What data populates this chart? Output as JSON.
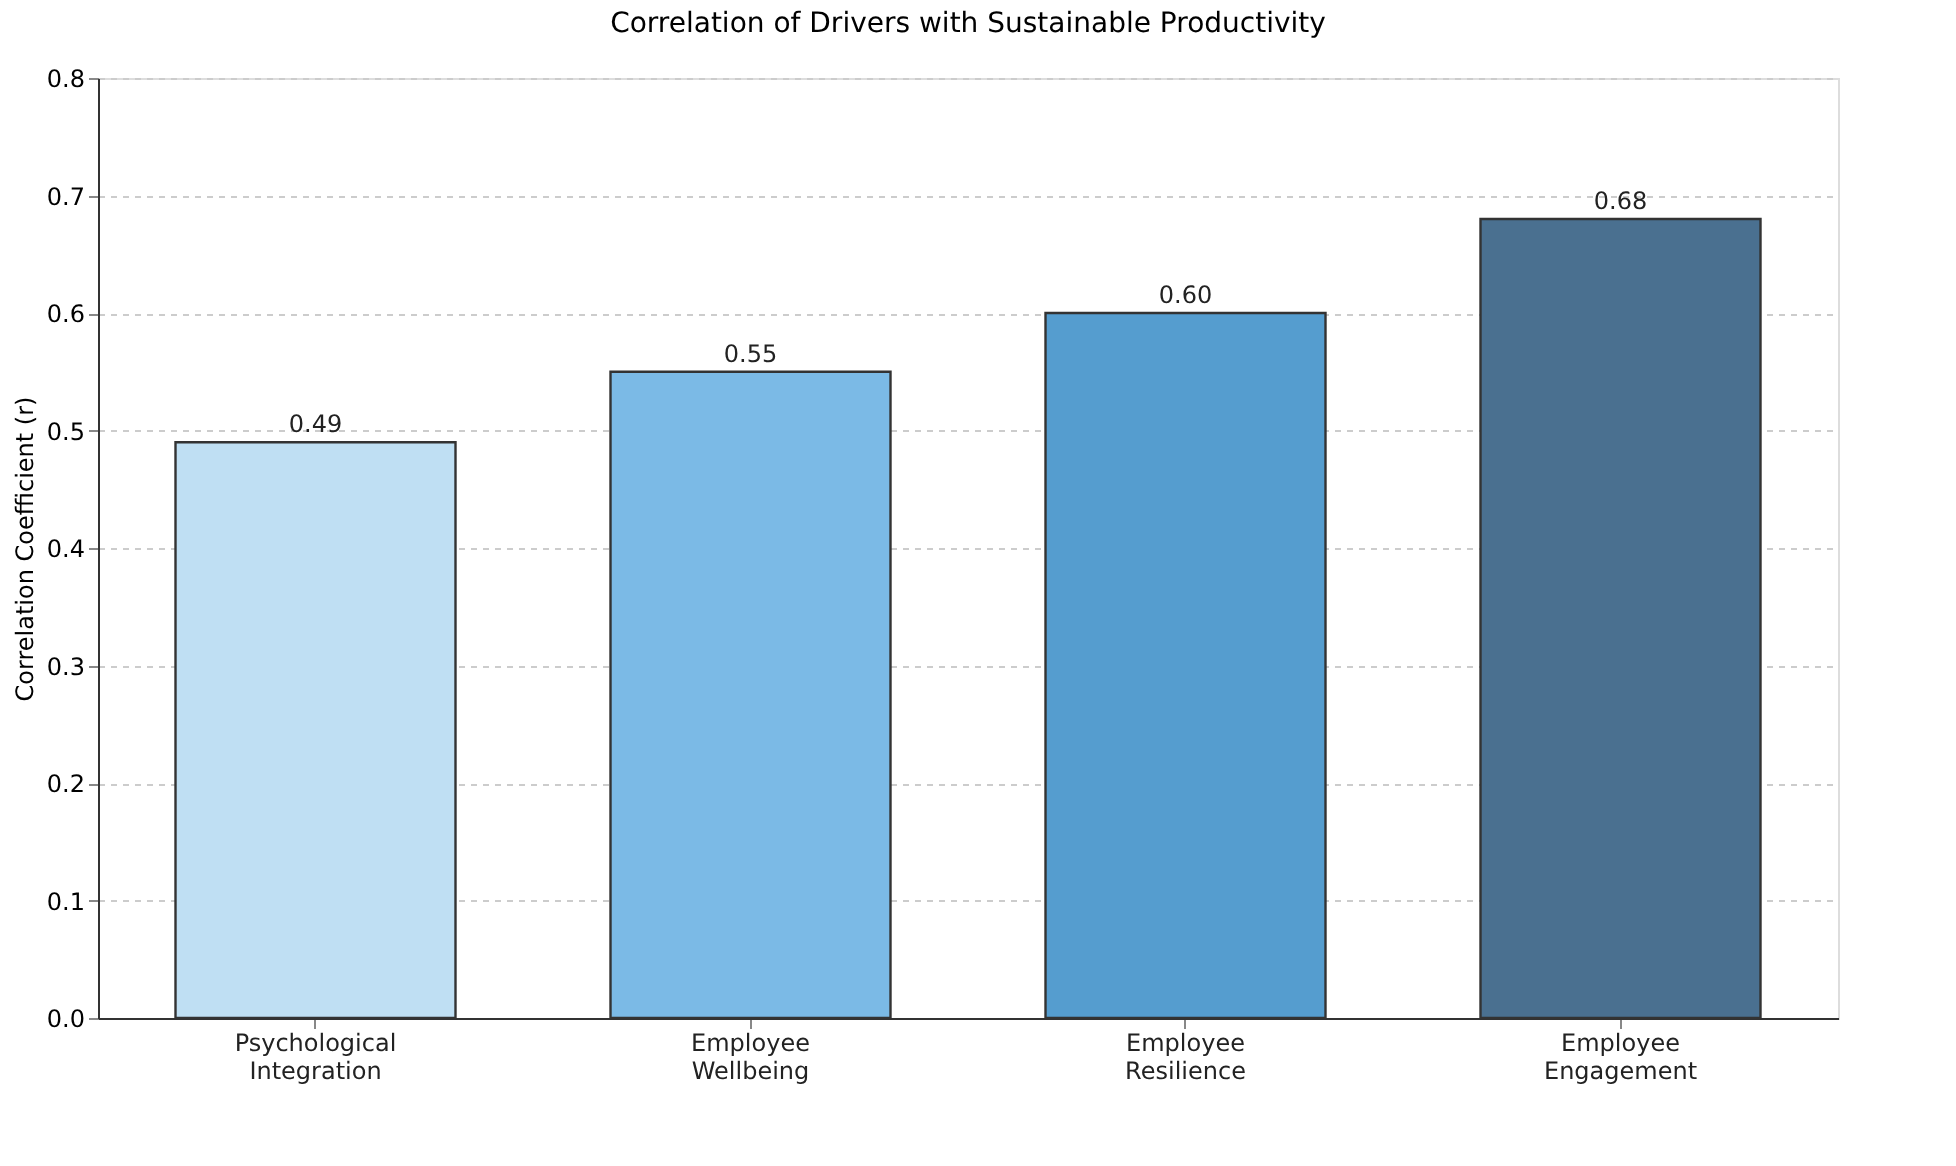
{
  "chart_data": {
    "type": "bar",
    "title": "Correlation of Drivers with Sustainable Productivity",
    "ylabel": "Correlation Coefficient (r)",
    "categories": [
      "Psychological Integration",
      "Employee Wellbeing",
      "Employee Resilience",
      "Employee Engagement"
    ],
    "values": [
      0.49,
      0.55,
      0.6,
      0.68
    ],
    "colors": [
      "#bfdff3",
      "#7bbae6",
      "#559dcf",
      "#4a7090"
    ],
    "value_labels": [
      "0.49",
      "0.55",
      "0.60",
      "0.68"
    ],
    "ylim": [
      0,
      0.8
    ],
    "yticks": [
      {
        "value": 0,
        "label": "0.0"
      },
      0.1,
      0.2,
      0.3,
      0.4,
      0.5,
      0.6,
      0.7,
      0.8
    ],
    "grid": "y"
  }
}
